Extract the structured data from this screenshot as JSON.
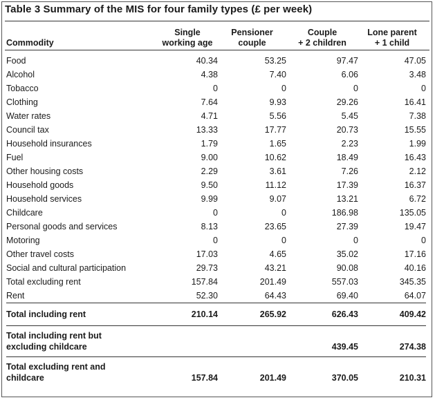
{
  "title": "Table 3  Summary of the MIS for four family types (£ per week)",
  "columns": {
    "commodity": "Commodity",
    "single_l1": "Single",
    "single_l2": "working age",
    "pensioner_l1": "Pensioner",
    "pensioner_l2": "couple",
    "couple_l1": "Couple",
    "couple_l2": "+ 2 children",
    "lone_l1": "Lone parent",
    "lone_l2": "+ 1 child"
  },
  "rows": [
    {
      "label": "Food",
      "single": "40.34",
      "pensioner": "53.25",
      "couple": "97.47",
      "lone": "47.05"
    },
    {
      "label": "Alcohol",
      "single": "4.38",
      "pensioner": "7.40",
      "couple": "6.06",
      "lone": "3.48"
    },
    {
      "label": "Tobacco",
      "single": "0",
      "pensioner": "0",
      "couple": "0",
      "lone": "0"
    },
    {
      "label": "Clothing",
      "single": "7.64",
      "pensioner": "9.93",
      "couple": "29.26",
      "lone": "16.41"
    },
    {
      "label": "Water rates",
      "single": "4.71",
      "pensioner": "5.56",
      "couple": "5.45",
      "lone": "7.38"
    },
    {
      "label": "Council tax",
      "single": "13.33",
      "pensioner": "17.77",
      "couple": "20.73",
      "lone": "15.55"
    },
    {
      "label": "Household insurances",
      "single": "1.79",
      "pensioner": "1.65",
      "couple": "2.23",
      "lone": "1.99"
    },
    {
      "label": "Fuel",
      "single": "9.00",
      "pensioner": "10.62",
      "couple": "18.49",
      "lone": "16.43"
    },
    {
      "label": "Other housing costs",
      "single": "2.29",
      "pensioner": "3.61",
      "couple": "7.26",
      "lone": "2.12"
    },
    {
      "label": "Household goods",
      "single": "9.50",
      "pensioner": "11.12",
      "couple": "17.39",
      "lone": "16.37"
    },
    {
      "label": "Household services",
      "single": "9.99",
      "pensioner": "9.07",
      "couple": "13.21",
      "lone": "6.72"
    },
    {
      "label": "Childcare",
      "single": "0",
      "pensioner": "0",
      "couple": "186.98",
      "lone": "135.05"
    },
    {
      "label": "Personal goods and services",
      "single": "8.13",
      "pensioner": "23.65",
      "couple": "27.39",
      "lone": "19.47"
    },
    {
      "label": "Motoring",
      "single": "0",
      "pensioner": "0",
      "couple": "0",
      "lone": "0"
    },
    {
      "label": "Other travel costs",
      "single": "17.03",
      "pensioner": "4.65",
      "couple": "35.02",
      "lone": "17.16"
    },
    {
      "label": "Social and cultural participation",
      "single": "29.73",
      "pensioner": "43.21",
      "couple": "90.08",
      "lone": "40.16"
    },
    {
      "label": "Total excluding rent",
      "single": "157.84",
      "pensioner": "201.49",
      "couple": "557.03",
      "lone": "345.35"
    },
    {
      "label": "Rent",
      "single": "52.30",
      "pensioner": "64.43",
      "couple": "69.40",
      "lone": "64.07"
    }
  ],
  "totals": [
    {
      "label_l1": "Total including rent",
      "label_l2": "",
      "single": "210.14",
      "pensioner": "265.92",
      "couple": "626.43",
      "lone": "409.42"
    },
    {
      "label_l1": "Total including rent but",
      "label_l2": "excluding childcare",
      "single": "",
      "pensioner": "",
      "couple": "439.45",
      "lone": "274.38"
    },
    {
      "label_l1": "Total excluding rent and",
      "label_l2": "childcare",
      "single": "157.84",
      "pensioner": "201.49",
      "couple": "370.05",
      "lone": "210.31"
    }
  ]
}
